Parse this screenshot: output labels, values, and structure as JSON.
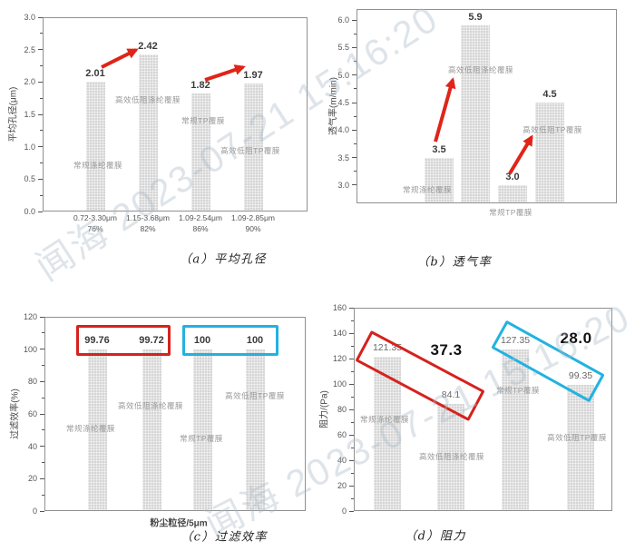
{
  "colors": {
    "bar_fill": "#d5d5d5",
    "axis_frame": "#909090",
    "tick_text": "#555555",
    "value_text": "#3b3b3b",
    "category_text": "#9a9a9a",
    "red_accent": "#d5221e",
    "cyan_accent": "#22b2e0",
    "arrow_red": "#e02419"
  },
  "watermark": {
    "text": "闻海 2023-07-21 15:16:20",
    "color": "#a9bac6"
  },
  "chart_data": [
    {
      "id": "a",
      "type": "bar",
      "caption": "（a）平均孔径",
      "ylabel": "平均孔径(μm)",
      "categories": [
        "常规涤纶覆膜",
        "高效低阻涤纶覆膜",
        "常规TP覆膜",
        "高效低阻TP覆膜"
      ],
      "values": [
        2.01,
        2.42,
        1.82,
        1.97
      ],
      "value_labels": [
        "2.01",
        "2.42",
        "1.82",
        "1.97"
      ],
      "ylim": [
        0,
        3.0
      ],
      "ytick_range": [
        0,
        3.0
      ],
      "ytick_step": 0.5,
      "grid": false,
      "xtick_labels": [
        [
          "0.72-3.30μm",
          "76%"
        ],
        [
          "1.15-3.68μm",
          "82%"
        ],
        [
          "1.09-2.54μm",
          "86%"
        ],
        [
          "1.09-2.85μm",
          "90%"
        ]
      ],
      "arrows": [
        {
          "from_category": "常规涤纶覆膜",
          "to_category": "高效低阻涤纶覆膜",
          "meaning": "increase"
        },
        {
          "from_category": "常规TP覆膜",
          "to_category": "高效低阻TP覆膜",
          "meaning": "increase"
        }
      ]
    },
    {
      "id": "b",
      "type": "bar",
      "caption": "（b）透气率",
      "ylabel": "透气率(m/min)",
      "categories": [
        "常规涤纶覆膜",
        "高效低阻涤纶覆膜",
        "常规TP覆膜",
        "高效低阻TP覆膜"
      ],
      "values": [
        3.5,
        5.9,
        3.0,
        4.5
      ],
      "value_labels": [
        "3.5",
        "5.9",
        "3.0",
        "4.5"
      ],
      "ylim": [
        2.67,
        6.2
      ],
      "ytick_range": [
        3.0,
        6.0
      ],
      "ytick_step": 0.5,
      "grid": false,
      "arrows": [
        {
          "from_category": "常规涤纶覆膜",
          "to_category": "高效低阻涤纶覆膜",
          "meaning": "increase"
        },
        {
          "from_category": "常规TP覆膜",
          "to_category": "高效低阻TP覆膜",
          "meaning": "increase"
        }
      ]
    },
    {
      "id": "c",
      "type": "bar",
      "caption": "（c）过滤效率",
      "ylabel": "过滤效率(%)",
      "xlabel": "粉尘粒径/5μm",
      "categories": [
        "常规涤纶覆膜",
        "高效低阻涤纶覆膜",
        "常规TP覆膜",
        "高效低阻TP覆膜"
      ],
      "values": [
        99.76,
        99.72,
        100,
        100
      ],
      "value_labels": [
        "99.76",
        "99.72",
        "100",
        "100"
      ],
      "ylim": [
        0,
        120
      ],
      "ytick_range": [
        0,
        120
      ],
      "ytick_step": 20,
      "grid": false,
      "highlight_boxes": [
        {
          "color_key": "red_accent",
          "around": [
            "常规涤纶覆膜",
            "高效低阻涤纶覆膜"
          ]
        },
        {
          "color_key": "cyan_accent",
          "around": [
            "常规TP覆膜",
            "高效低阻TP覆膜"
          ]
        }
      ]
    },
    {
      "id": "d",
      "type": "bar",
      "caption": "（d）阻力",
      "ylabel": "阻力/(Pa)",
      "categories": [
        "常规涤纶覆膜",
        "高效低阻涤纶覆膜",
        "常规TP覆膜",
        "高效低阻TP覆膜"
      ],
      "values": [
        121.35,
        84.1,
        127.35,
        99.35
      ],
      "value_labels": [
        "121.35",
        "84.1",
        "127.35",
        "99.35"
      ],
      "ylim": [
        0,
        160
      ],
      "ytick_range": [
        0,
        160
      ],
      "ytick_step": 20,
      "grid": false,
      "annotations": [
        {
          "text": "37.3",
          "meaning": "resistance reduction 涤纶"
        },
        {
          "text": "28.0",
          "meaning": "resistance reduction TP"
        }
      ],
      "highlight_boxes": [
        {
          "color_key": "red_accent",
          "around": [
            "常规涤纶覆膜",
            "高效低阻涤纶覆膜"
          ]
        },
        {
          "color_key": "cyan_accent",
          "around": [
            "常规TP覆膜",
            "高效低阻TP覆膜"
          ]
        }
      ]
    }
  ]
}
